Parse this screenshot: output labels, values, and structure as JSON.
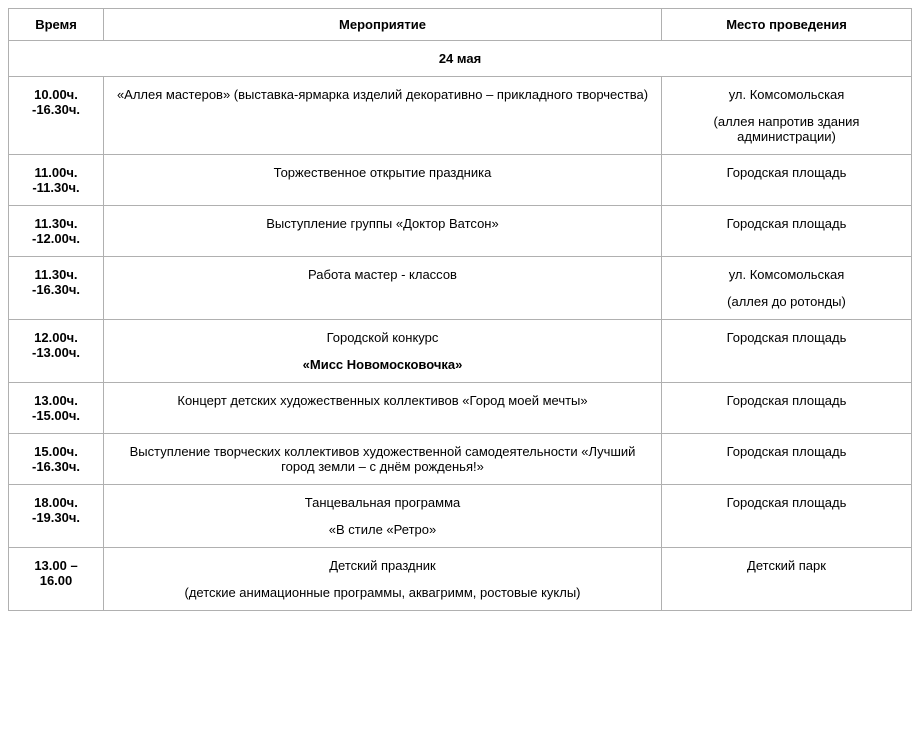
{
  "headers": {
    "time": "Время",
    "event": "Мероприятие",
    "place": "Место проведения"
  },
  "date_label": "24 мая",
  "rows": [
    {
      "time": "10.00ч.\n-16.30ч.",
      "event_lines": [
        {
          "text": "«Аллея мастеров» (выставка-ярмарка изделий декоративно – прикладного творчества)",
          "bold": false
        }
      ],
      "place_lines": [
        {
          "text": "ул. Комсомольская",
          "bold": false
        },
        {
          "text": "(аллея напротив здания администрации)",
          "bold": false
        }
      ]
    },
    {
      "time": "11.00ч.\n-11.30ч.",
      "event_lines": [
        {
          "text": "Торжественное открытие праздника",
          "bold": false
        }
      ],
      "place_lines": [
        {
          "text": "Городская площадь",
          "bold": false
        }
      ]
    },
    {
      "time": "11.30ч.\n-12.00ч.",
      "event_lines": [
        {
          "text": "Выступление группы «Доктор Ватсон»",
          "bold": false
        }
      ],
      "place_lines": [
        {
          "text": "Городская площадь",
          "bold": false
        }
      ]
    },
    {
      "time": "11.30ч.\n-16.30ч.",
      "event_lines": [
        {
          "text": "Работа мастер - классов",
          "bold": false
        }
      ],
      "place_lines": [
        {
          "text": "ул. Комсомольская",
          "bold": false
        },
        {
          "text": "(аллея до ротонды)",
          "bold": false
        }
      ]
    },
    {
      "time": "12.00ч.\n-13.00ч.",
      "event_lines": [
        {
          "text": "Городской конкурс",
          "bold": false
        },
        {
          "text": "«Мисс Новомосковочка»",
          "bold": true
        }
      ],
      "place_lines": [
        {
          "text": "Городская площадь",
          "bold": false
        }
      ]
    },
    {
      "time": "13.00ч.\n-15.00ч.",
      "event_lines": [
        {
          "text": "Концерт детских художественных коллективов «Город моей мечты»",
          "bold": false
        }
      ],
      "place_lines": [
        {
          "text": "Городская площадь",
          "bold": false
        }
      ]
    },
    {
      "time": "15.00ч.\n-16.30ч.",
      "event_lines": [
        {
          "text": "Выступление творческих коллективов художественной самодеятельности «Лучший город земли – с днём рожденья!»",
          "bold": false
        }
      ],
      "place_lines": [
        {
          "text": "Городская площадь",
          "bold": false
        }
      ]
    },
    {
      "time": "18.00ч.\n-19.30ч.",
      "event_lines": [
        {
          "text": "Танцевальная программа",
          "bold": false
        },
        {
          "text": "«В стиле «Ретро»",
          "bold": false
        }
      ],
      "place_lines": [
        {
          "text": "Городская площадь",
          "bold": false
        }
      ]
    },
    {
      "time": "13.00 – 16.00",
      "event_lines": [
        {
          "text": "Детский праздник",
          "bold": false
        },
        {
          "text": "(детские анимационные программы, аквагримм, ростовые куклы)",
          "bold": false
        }
      ],
      "place_lines": [
        {
          "text": "Детский парк",
          "bold": false
        }
      ]
    }
  ]
}
